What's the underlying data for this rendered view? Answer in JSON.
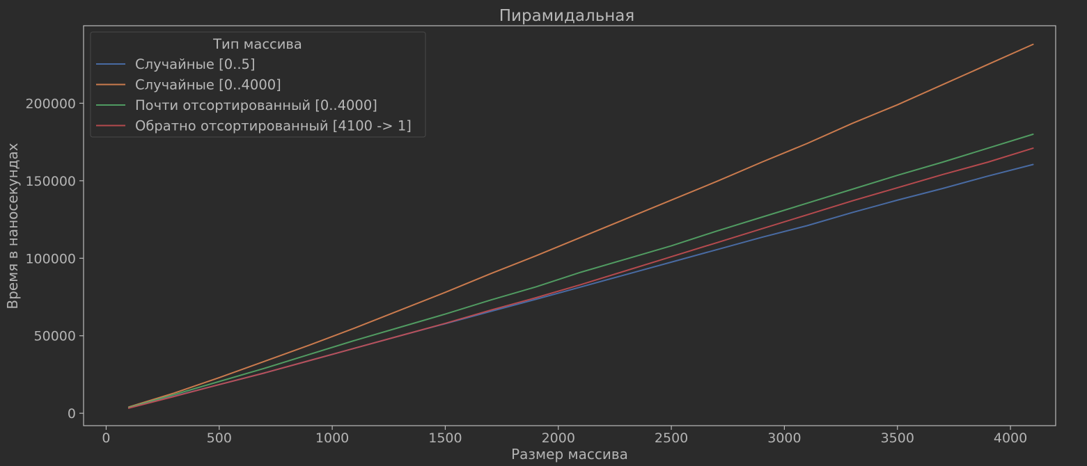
{
  "chart_data": {
    "type": "line",
    "title": "Пирамидальная",
    "xlabel": "Размер массива",
    "ylabel": "Время в наносекундах",
    "xlim": [
      -100,
      4200
    ],
    "ylim": [
      -8000,
      250000
    ],
    "xticks": [
      0,
      500,
      1000,
      1500,
      2000,
      2500,
      3000,
      3500,
      4000
    ],
    "yticks": [
      0,
      50000,
      100000,
      150000,
      200000
    ],
    "grid": false,
    "legend": {
      "title": "Тип массива",
      "placement": "upper-left"
    },
    "x": [
      100,
      300,
      500,
      700,
      900,
      1100,
      1300,
      1500,
      1700,
      1900,
      2100,
      2300,
      2500,
      2700,
      2900,
      3100,
      3300,
      3500,
      3700,
      3900,
      4100
    ],
    "series": [
      {
        "name": "Случайные [0..5]",
        "color": "#4c72b0",
        "values": [
          3500,
          11000,
          18500,
          26000,
          34000,
          42000,
          50000,
          57800,
          65700,
          73500,
          81500,
          89500,
          97500,
          105500,
          113500,
          121000,
          129500,
          137500,
          145000,
          153000,
          160500
        ]
      },
      {
        "name": "Случайные [0..4000]",
        "color": "#dd8452",
        "values": [
          4000,
          13000,
          23000,
          33500,
          44000,
          55000,
          66500,
          78000,
          90000,
          101500,
          113500,
          125500,
          137500,
          149500,
          162000,
          174000,
          187000,
          199000,
          212000,
          225000,
          238000
        ]
      },
      {
        "name": "Почти отсортированный [0..4000]",
        "color": "#55a868",
        "values": [
          3800,
          12000,
          20500,
          29000,
          38000,
          47000,
          55500,
          64000,
          73000,
          81500,
          91000,
          99500,
          108000,
          117500,
          126500,
          135500,
          144500,
          153500,
          162000,
          171000,
          180000
        ]
      },
      {
        "name": "Обратно отсортированный [4100 -> 1]",
        "color": "#c44e52",
        "values": [
          3300,
          10800,
          18500,
          26000,
          34000,
          42000,
          50000,
          58000,
          66500,
          74500,
          83000,
          92000,
          101000,
          110000,
          119000,
          128000,
          137000,
          145500,
          154000,
          162000,
          171000
        ]
      }
    ],
    "colors": {
      "background": "#2b2b2b",
      "axes_frame": "#bcbcbc",
      "text": "#b4b4b4",
      "legend_background": "#2b2b2b",
      "legend_border": "#4a4a4a"
    }
  }
}
